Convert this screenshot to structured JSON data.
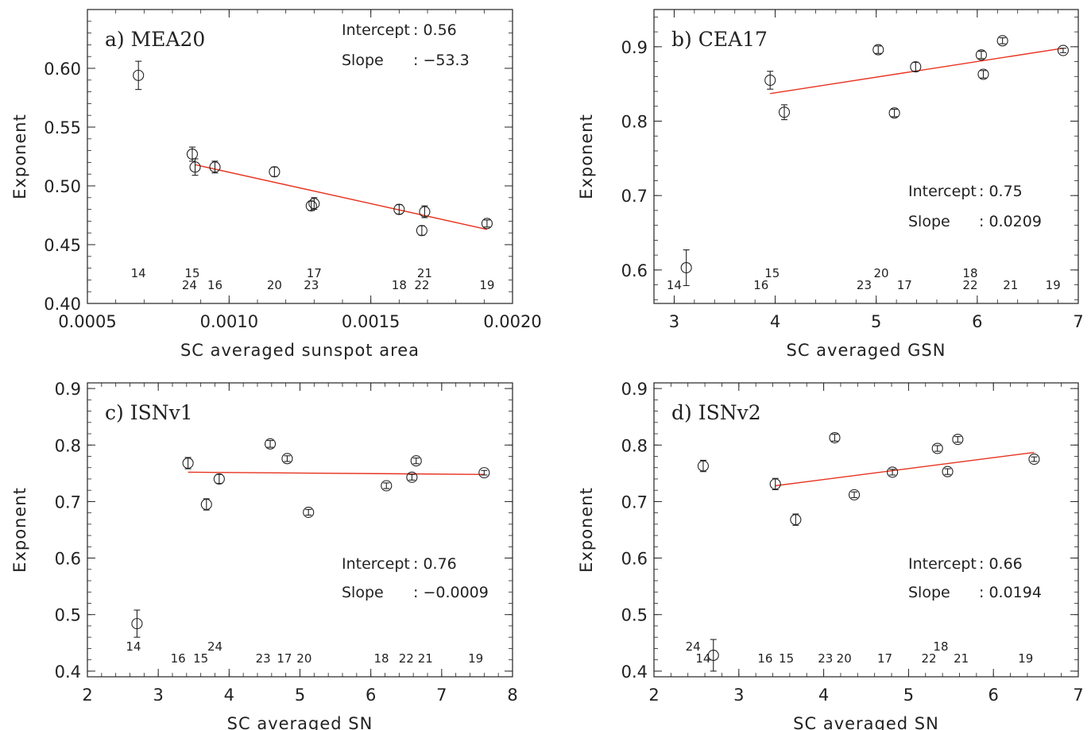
{
  "chart_data": [
    {
      "type": "scatter",
      "panel_label": "a) MEA20",
      "xlabel": "SC averaged sunspot area",
      "ylabel": "Exponent",
      "xlim": [
        0.0005,
        0.002
      ],
      "ylim": [
        0.4,
        0.65
      ],
      "xticks": [
        0.0005,
        0.001,
        0.0015,
        0.002
      ],
      "xtick_labels": [
        "0.0005",
        "0.0010",
        "0.0015",
        "0.0020"
      ],
      "yticks": [
        0.4,
        0.45,
        0.5,
        0.55,
        0.6
      ],
      "ytick_labels": [
        "0.40",
        "0.45",
        "0.50",
        "0.55",
        "0.60"
      ],
      "points": [
        {
          "x": 0.00068,
          "y": 0.594,
          "err": 0.012
        },
        {
          "x": 0.00087,
          "y": 0.527,
          "err": 0.006
        },
        {
          "x": 0.00088,
          "y": 0.516,
          "err": 0.007
        },
        {
          "x": 0.00095,
          "y": 0.516,
          "err": 0.005
        },
        {
          "x": 0.00116,
          "y": 0.512,
          "err": 0.004
        },
        {
          "x": 0.00129,
          "y": 0.483,
          "err": 0.004
        },
        {
          "x": 0.0013,
          "y": 0.485,
          "err": 0.005
        },
        {
          "x": 0.0016,
          "y": 0.48,
          "err": 0.004
        },
        {
          "x": 0.00168,
          "y": 0.462,
          "err": 0.004
        },
        {
          "x": 0.00169,
          "y": 0.478,
          "err": 0.005
        },
        {
          "x": 0.00191,
          "y": 0.468,
          "err": 0.003
        }
      ],
      "fit_line": {
        "x": [
          0.00088,
          0.00191
        ],
        "y": [
          0.518,
          0.463
        ]
      },
      "cycle_labels": [
        {
          "text": "14",
          "x": 0.00068,
          "row": 1
        },
        {
          "text": "15",
          "x": 0.00087,
          "row": 1
        },
        {
          "text": "24",
          "x": 0.00086,
          "row": 2
        },
        {
          "text": "16",
          "x": 0.00095,
          "row": 2
        },
        {
          "text": "20",
          "x": 0.00116,
          "row": 2
        },
        {
          "text": "17",
          "x": 0.0013,
          "row": 1
        },
        {
          "text": "23",
          "x": 0.00129,
          "row": 2
        },
        {
          "text": "21",
          "x": 0.00169,
          "row": 1
        },
        {
          "text": "18",
          "x": 0.0016,
          "row": 2
        },
        {
          "text": "22",
          "x": 0.00168,
          "row": 2
        },
        {
          "text": "19",
          "x": 0.00191,
          "row": 2
        }
      ],
      "annotations": {
        "intercept_label": "Intercept",
        "intercept_value": ": 0.56",
        "slope_label": "Slope",
        "slope_value": ": −53.3",
        "position": "top-right"
      }
    },
    {
      "type": "scatter",
      "panel_label": "b) CEA17",
      "xlabel": "SC averaged GSN",
      "ylabel": "Exponent",
      "xlim": [
        2.8,
        7.0
      ],
      "ylim": [
        0.555,
        0.95
      ],
      "xticks": [
        3,
        4,
        5,
        6,
        7
      ],
      "xtick_labels": [
        "3",
        "4",
        "5",
        "6",
        "7"
      ],
      "yticks": [
        0.6,
        0.7,
        0.8,
        0.9
      ],
      "ytick_labels": [
        "0.6",
        "0.7",
        "0.8",
        "0.9"
      ],
      "points": [
        {
          "x": 3.12,
          "y": 0.603,
          "err": 0.024
        },
        {
          "x": 3.95,
          "y": 0.855,
          "err": 0.012
        },
        {
          "x": 4.09,
          "y": 0.812,
          "err": 0.01
        },
        {
          "x": 5.02,
          "y": 0.896,
          "err": 0.005
        },
        {
          "x": 5.18,
          "y": 0.811,
          "err": 0.005
        },
        {
          "x": 5.39,
          "y": 0.873,
          "err": 0.006
        },
        {
          "x": 6.04,
          "y": 0.889,
          "err": 0.005
        },
        {
          "x": 6.06,
          "y": 0.863,
          "err": 0.005
        },
        {
          "x": 6.25,
          "y": 0.908,
          "err": 0.004
        },
        {
          "x": 6.85,
          "y": 0.895,
          "err": 0.003
        }
      ],
      "fit_line": {
        "x": [
          3.95,
          6.85
        ],
        "y": [
          0.837,
          0.898
        ]
      },
      "cycle_labels": [
        {
          "text": "14",
          "x": 3.0,
          "row": 2
        },
        {
          "text": "15",
          "x": 3.97,
          "row": 1
        },
        {
          "text": "16",
          "x": 3.86,
          "row": 2
        },
        {
          "text": "20",
          "x": 5.05,
          "row": 1
        },
        {
          "text": "23",
          "x": 4.88,
          "row": 2
        },
        {
          "text": "17",
          "x": 5.28,
          "row": 2
        },
        {
          "text": "18",
          "x": 5.93,
          "row": 1
        },
        {
          "text": "22",
          "x": 5.93,
          "row": 2
        },
        {
          "text": "21",
          "x": 6.33,
          "row": 2
        },
        {
          "text": "19",
          "x": 6.75,
          "row": 2
        }
      ],
      "annotations": {
        "intercept_label": "Intercept",
        "intercept_value": ": 0.75",
        "slope_label": "Slope",
        "slope_value": ":  0.0209",
        "position": "bottom-right"
      }
    },
    {
      "type": "scatter",
      "panel_label": "c) ISNv1",
      "xlabel": "SC averaged SN",
      "ylabel": "Exponent",
      "xlim": [
        2,
        8
      ],
      "ylim": [
        0.39,
        0.91
      ],
      "xticks": [
        2,
        3,
        4,
        5,
        6,
        7,
        8
      ],
      "xtick_labels": [
        "2",
        "3",
        "4",
        "5",
        "6",
        "7",
        "8"
      ],
      "yticks": [
        0.4,
        0.5,
        0.6,
        0.7,
        0.8,
        0.9
      ],
      "ytick_labels": [
        "0.4",
        "0.5",
        "0.6",
        "0.7",
        "0.8",
        "0.9"
      ],
      "points": [
        {
          "x": 2.7,
          "y": 0.484,
          "err": 0.024
        },
        {
          "x": 3.42,
          "y": 0.768,
          "err": 0.01
        },
        {
          "x": 3.68,
          "y": 0.695,
          "err": 0.01
        },
        {
          "x": 3.86,
          "y": 0.74,
          "err": 0.008
        },
        {
          "x": 4.58,
          "y": 0.802,
          "err": 0.006
        },
        {
          "x": 4.82,
          "y": 0.776,
          "err": 0.005
        },
        {
          "x": 5.12,
          "y": 0.681,
          "err": 0.005
        },
        {
          "x": 6.22,
          "y": 0.728,
          "err": 0.005
        },
        {
          "x": 6.58,
          "y": 0.743,
          "err": 0.005
        },
        {
          "x": 6.64,
          "y": 0.772,
          "err": 0.005
        },
        {
          "x": 7.6,
          "y": 0.751,
          "err": 0.004
        }
      ],
      "fit_line": {
        "x": [
          3.42,
          7.6
        ],
        "y": [
          0.752,
          0.748
        ]
      },
      "cycle_labels": [
        {
          "text": "14",
          "x": 2.65,
          "row": 1
        },
        {
          "text": "24",
          "x": 3.8,
          "row": 1
        },
        {
          "text": "16",
          "x": 3.28,
          "row": 2
        },
        {
          "text": "15",
          "x": 3.6,
          "row": 2
        },
        {
          "text": "23",
          "x": 4.48,
          "row": 2
        },
        {
          "text": "17",
          "x": 4.78,
          "row": 2
        },
        {
          "text": "20",
          "x": 5.06,
          "row": 2
        },
        {
          "text": "18",
          "x": 6.15,
          "row": 2
        },
        {
          "text": "22",
          "x": 6.5,
          "row": 2
        },
        {
          "text": "21",
          "x": 6.77,
          "row": 2
        },
        {
          "text": "19",
          "x": 7.48,
          "row": 2
        }
      ],
      "annotations": {
        "intercept_label": "Intercept",
        "intercept_value": ": 0.76",
        "slope_label": "Slope",
        "slope_value": ": −0.0009",
        "position": "bottom-right"
      }
    },
    {
      "type": "scatter",
      "panel_label": "d) ISNv2",
      "xlabel": "SC averaged SN",
      "ylabel": "Exponent",
      "xlim": [
        2,
        7
      ],
      "ylim": [
        0.39,
        0.91
      ],
      "xticks": [
        2,
        3,
        4,
        5,
        6,
        7
      ],
      "xtick_labels": [
        "2",
        "3",
        "4",
        "5",
        "6",
        "7"
      ],
      "yticks": [
        0.4,
        0.5,
        0.6,
        0.7,
        0.8,
        0.9
      ],
      "ytick_labels": [
        "0.4",
        "0.5",
        "0.6",
        "0.7",
        "0.8",
        "0.9"
      ],
      "points": [
        {
          "x": 2.58,
          "y": 0.763,
          "err": 0.01
        },
        {
          "x": 2.7,
          "y": 0.428,
          "err": 0.028
        },
        {
          "x": 3.43,
          "y": 0.731,
          "err": 0.01
        },
        {
          "x": 3.67,
          "y": 0.668,
          "err": 0.01
        },
        {
          "x": 4.13,
          "y": 0.813,
          "err": 0.006
        },
        {
          "x": 4.36,
          "y": 0.712,
          "err": 0.005
        },
        {
          "x": 4.81,
          "y": 0.752,
          "err": 0.005
        },
        {
          "x": 5.34,
          "y": 0.794,
          "err": 0.005
        },
        {
          "x": 5.46,
          "y": 0.753,
          "err": 0.005
        },
        {
          "x": 5.58,
          "y": 0.81,
          "err": 0.005
        },
        {
          "x": 6.48,
          "y": 0.775,
          "err": 0.004
        }
      ],
      "fit_line": {
        "x": [
          3.43,
          6.48
        ],
        "y": [
          0.728,
          0.787
        ]
      },
      "cycle_labels": [
        {
          "text": "24",
          "x": 2.46,
          "row": 1
        },
        {
          "text": "14",
          "x": 2.58,
          "row": 2
        },
        {
          "text": "16",
          "x": 3.31,
          "row": 2
        },
        {
          "text": "15",
          "x": 3.56,
          "row": 2
        },
        {
          "text": "23",
          "x": 4.02,
          "row": 2
        },
        {
          "text": "20",
          "x": 4.24,
          "row": 2
        },
        {
          "text": "17",
          "x": 4.72,
          "row": 2
        },
        {
          "text": "18",
          "x": 5.38,
          "row": 1
        },
        {
          "text": "22",
          "x": 5.24,
          "row": 2
        },
        {
          "text": "21",
          "x": 5.62,
          "row": 2
        },
        {
          "text": "19",
          "x": 6.38,
          "row": 2
        }
      ],
      "annotations": {
        "intercept_label": "Intercept",
        "intercept_value": ": 0.66",
        "slope_label": "Slope",
        "slope_value": ":  0.0194",
        "position": "bottom-right"
      }
    }
  ]
}
